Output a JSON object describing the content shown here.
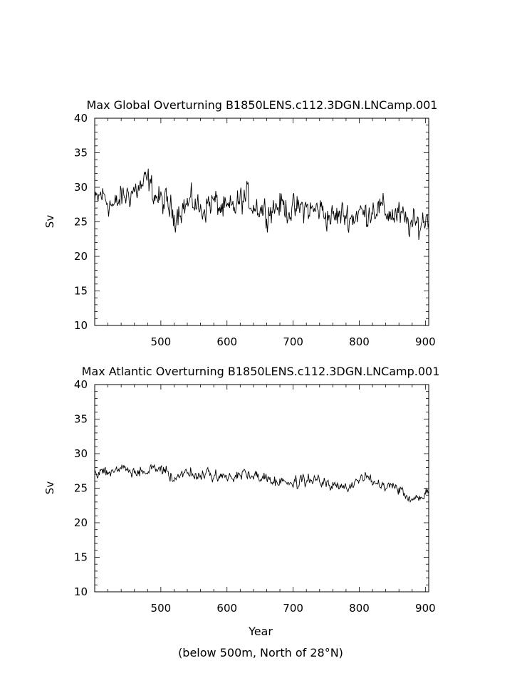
{
  "chart_data": [
    {
      "type": "line",
      "title": "Max Global Overturning B1850LENS.c112.3DGN.LNCamp.001",
      "xlabel": "",
      "ylabel": "Sv",
      "xlim": [
        400,
        905
      ],
      "ylim": [
        10,
        40
      ],
      "xticks": [
        500,
        600,
        700,
        800,
        900
      ],
      "yticks": [
        10,
        15,
        20,
        25,
        30,
        35,
        40
      ],
      "grid": false,
      "series": [
        {
          "x": [
            400,
            410,
            420,
            430,
            440,
            450,
            460,
            470,
            480,
            490,
            500,
            510,
            520,
            530,
            540,
            550,
            560,
            570,
            580,
            590,
            600,
            610,
            620,
            630,
            640,
            650,
            660,
            670,
            680,
            690,
            700,
            710,
            720,
            730,
            740,
            750,
            760,
            770,
            780,
            790,
            800,
            810,
            820,
            830,
            840,
            850,
            860,
            870,
            880,
            890,
            900,
            905
          ],
          "values": [
            27.5,
            29,
            28,
            27,
            28.5,
            29,
            29.5,
            30,
            31,
            29,
            28,
            27.5,
            26,
            27,
            27.5,
            28,
            26.5,
            27.5,
            28,
            27,
            26.5,
            27,
            28,
            28.5,
            27.5,
            27,
            26.5,
            27,
            27.5,
            27,
            26.5,
            27,
            27,
            26.5,
            27,
            26,
            25.5,
            26,
            26,
            25.5,
            26.5,
            26,
            27,
            27,
            26.5,
            26,
            26,
            25,
            24.5,
            24.5,
            25.5,
            25.5
          ],
          "amplitude": 1.8
        }
      ]
    },
    {
      "type": "line",
      "title": "Max Atlantic Overturning B1850LENS.c112.3DGN.LNCamp.001",
      "xlabel": "Year",
      "ylabel": "Sv",
      "xlim": [
        400,
        905
      ],
      "ylim": [
        10,
        40
      ],
      "xticks": [
        500,
        600,
        700,
        800,
        900
      ],
      "yticks": [
        10,
        15,
        20,
        25,
        30,
        35,
        40
      ],
      "grid": false,
      "series": [
        {
          "x": [
            400,
            410,
            420,
            430,
            440,
            450,
            460,
            470,
            480,
            490,
            500,
            510,
            520,
            530,
            540,
            550,
            560,
            570,
            580,
            590,
            600,
            610,
            620,
            630,
            640,
            650,
            660,
            670,
            680,
            690,
            700,
            710,
            720,
            730,
            740,
            750,
            760,
            770,
            780,
            790,
            800,
            810,
            820,
            830,
            840,
            850,
            860,
            870,
            880,
            890,
            900,
            905
          ],
          "values": [
            27,
            27.5,
            27.5,
            27.5,
            28,
            27.5,
            27,
            27.5,
            27.5,
            27.5,
            28,
            27,
            26.5,
            27,
            27.5,
            27,
            26.5,
            27,
            27,
            27,
            26.5,
            26.5,
            27,
            27,
            27,
            26.5,
            26.5,
            26,
            26,
            26,
            25.5,
            26,
            26,
            26.5,
            26,
            25.5,
            25.5,
            25,
            25,
            25.5,
            26.5,
            26.5,
            26,
            26,
            25.5,
            25.5,
            25,
            24,
            23.5,
            23.5,
            24.5,
            25
          ],
          "amplitude": 0.7
        }
      ]
    }
  ],
  "footnote": "(below 500m, North of 28°N)"
}
